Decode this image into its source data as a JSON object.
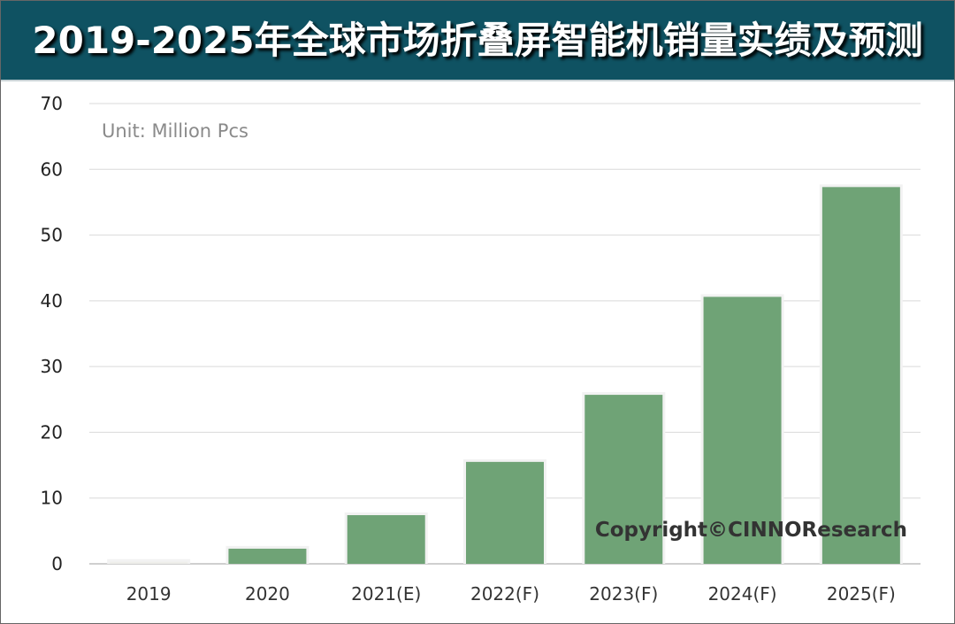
{
  "header": {
    "title": "2019-2025年全球市场折叠屏智能机销量实绩及预测"
  },
  "chart_data": {
    "type": "bar",
    "title": "2019-2025年全球市场折叠屏智能机销量实绩及预测",
    "unit_label": "Unit: Million Pcs",
    "categories": [
      "2019",
      "2020",
      "2021(E)",
      "2022(F)",
      "2023(F)",
      "2024(F)",
      "2025(F)"
    ],
    "values": [
      0.3,
      2.3,
      7.4,
      15.5,
      25.7,
      40.6,
      57.3
    ],
    "ylim": [
      0,
      70
    ],
    "yticks": [
      0,
      10,
      20,
      30,
      40,
      50,
      60,
      70
    ],
    "grid": true,
    "bar_color": "#6fa376",
    "first_bar_color": "#eeeeea",
    "watermark": "Copyright©CINNOResearch"
  },
  "colors": {
    "header_bg": "#0f5262",
    "header_text": "#ffffff"
  }
}
